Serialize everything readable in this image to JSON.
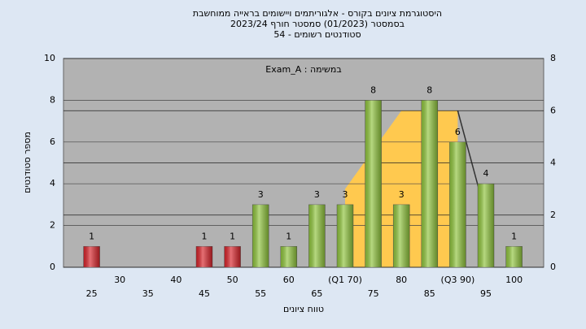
{
  "chart_data": {
    "type": "bar",
    "title": [
      "היסטוגרמת ציונים בקורס - אלגוריתמים ויישומים בראייה ממוחשבת",
      "בסמסטר (01/2023)  סמסטר חורף 2023/24",
      "סטודנטים רשומים - 54"
    ],
    "annotation": "Exam_A : במשימה",
    "x_label": "טווח ציונים",
    "y_label": "מספר סטודנטים",
    "categories": [
      "25",
      "30",
      "35",
      "40",
      "45",
      "50",
      "55",
      "60",
      "65",
      "(Q1 70)",
      "75",
      "80",
      "85",
      "(Q3 90)",
      "95",
      "100"
    ],
    "values": [
      1,
      0,
      0,
      0,
      1,
      1,
      3,
      1,
      3,
      3,
      8,
      3,
      8,
      6,
      4,
      1
    ],
    "colors": [
      "#d8232a",
      "#d8232a",
      "#d8232a",
      "#d8232a",
      "#d8232a",
      "#d8232a",
      "#8fc43c",
      "#8fc43c",
      "#8fc43c",
      "#8fc43c",
      "#8fc43c",
      "#8fc43c",
      "#8fc43c",
      "#8fc43c",
      "#8fc43c",
      "#8fc43c"
    ],
    "ylim": [
      0,
      10
    ],
    "yticks": [
      0,
      2,
      4,
      6,
      8,
      10
    ],
    "y2lim": [
      0,
      8
    ],
    "y2ticks": [
      0,
      2,
      4,
      6,
      8
    ],
    "series": [
      {
        "kind": "area",
        "axis": "y2",
        "color": "#ffc94f",
        "x": [
          70,
          80,
          90
        ],
        "values": [
          3,
          6,
          6
        ]
      },
      {
        "kind": "line",
        "axis": "y2",
        "color": "#333333",
        "x": [
          90,
          95
        ],
        "values": [
          6,
          2
        ]
      }
    ],
    "grid": true
  }
}
